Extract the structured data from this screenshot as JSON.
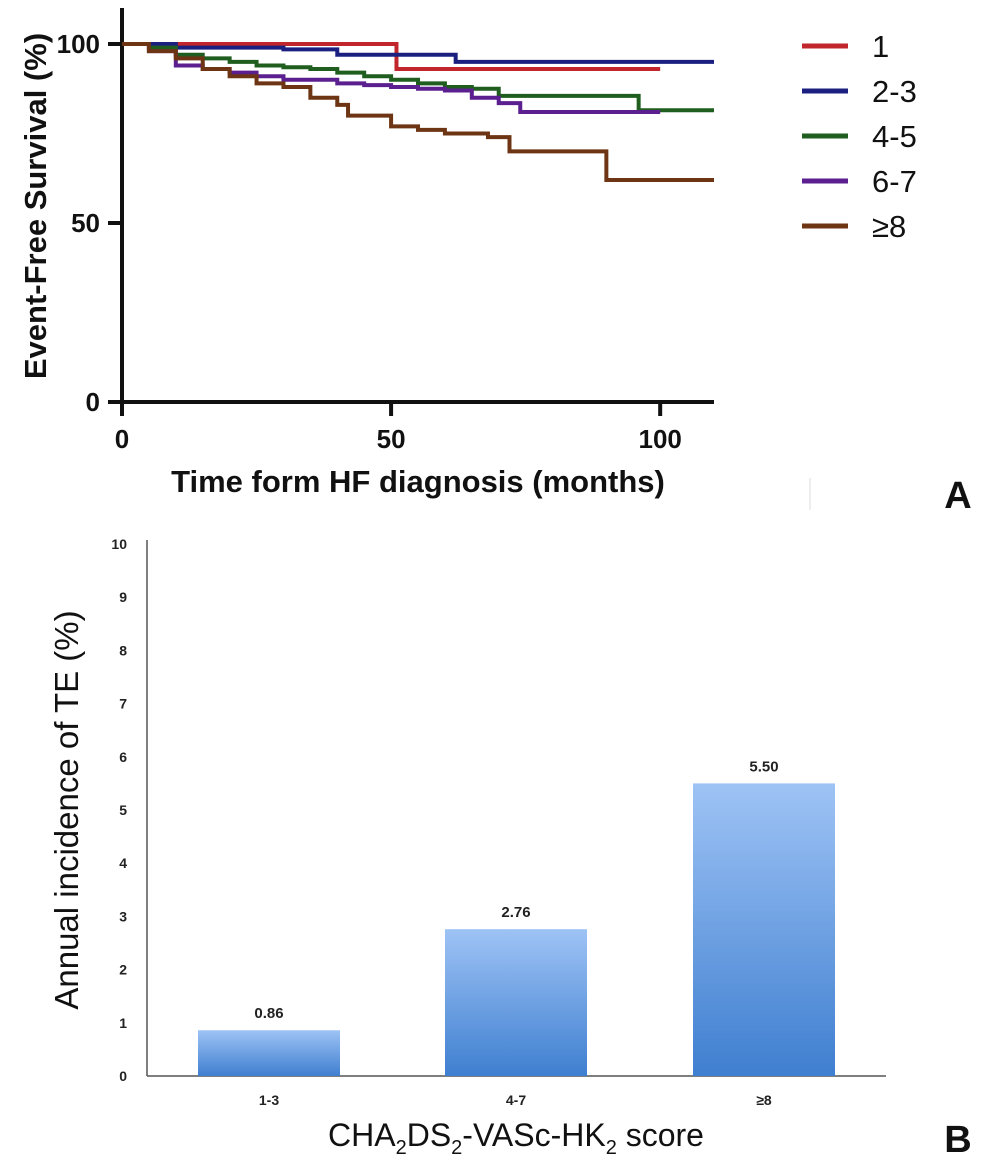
{
  "chart_data": [
    {
      "type": "line",
      "panel": "A",
      "xlabel": "Time form HF diagnosis (months)",
      "ylabel": "Event-Free Survival (%)",
      "xlim": [
        0,
        110
      ],
      "ylim": [
        0,
        100
      ],
      "xticks": [
        "0",
        "50",
        "100"
      ],
      "yticks": [
        "0",
        "50",
        "100"
      ],
      "legend_position": "top-right",
      "series": [
        {
          "name": "1",
          "color": "#c0262b",
          "x": [
            0,
            51,
            51,
            100
          ],
          "y": [
            100,
            100,
            93,
            93
          ]
        },
        {
          "name": "2-3",
          "color": "#1b2080",
          "x": [
            0,
            10,
            30,
            40,
            60,
            62,
            110
          ],
          "y": [
            100,
            99,
            98.5,
            97,
            97,
            95,
            95
          ]
        },
        {
          "name": "4-5",
          "color": "#1f5e1f",
          "x": [
            0,
            5,
            10,
            15,
            20,
            25,
            30,
            35,
            40,
            45,
            50,
            55,
            60,
            65,
            70,
            96,
            96,
            110
          ],
          "y": [
            100,
            99,
            97,
            96,
            95,
            94,
            93.5,
            93,
            92,
            91,
            90,
            89,
            88,
            87.5,
            85.5,
            85.5,
            81.5,
            81.5
          ]
        },
        {
          "name": "6-7",
          "color": "#5b1f8f",
          "x": [
            0,
            5,
            10,
            15,
            20,
            25,
            30,
            35,
            40,
            45,
            50,
            55,
            60,
            65,
            70,
            74,
            100
          ],
          "y": [
            100,
            98,
            94,
            93,
            92,
            91,
            90,
            90,
            89,
            88.5,
            88,
            87.5,
            87,
            85,
            83.5,
            81,
            81
          ]
        },
        {
          "name": "≥8",
          "color": "#6e3514",
          "x": [
            0,
            5,
            10,
            15,
            20,
            25,
            30,
            35,
            40,
            42,
            50,
            55,
            60,
            68,
            72,
            90,
            90,
            110
          ],
          "y": [
            100,
            98,
            96,
            93,
            91,
            89,
            88,
            85,
            83,
            80,
            77,
            76,
            75,
            74,
            70,
            70,
            62,
            62
          ]
        }
      ]
    },
    {
      "type": "bar",
      "panel": "B",
      "categories": [
        "1-3",
        "4-7",
        "≥8"
      ],
      "values": [
        0.86,
        2.76,
        5.5
      ],
      "value_labels": [
        "0.86",
        "2.76",
        "5.50"
      ],
      "ylabel": "Annual incidence of TE (%)",
      "xlabel_parts": [
        "CHA",
        "2",
        "DS",
        "2",
        "-VASc-HK",
        "2",
        " score"
      ],
      "ylim": [
        0,
        10
      ],
      "yticks": [
        "0",
        "1",
        "2",
        "3",
        "4",
        "5",
        "6",
        "7",
        "8",
        "9",
        "10"
      ],
      "bar_color_top": "#9ec3f5",
      "bar_color_bottom": "#3f7fd0"
    }
  ],
  "panel_labels": [
    "A",
    "B"
  ]
}
